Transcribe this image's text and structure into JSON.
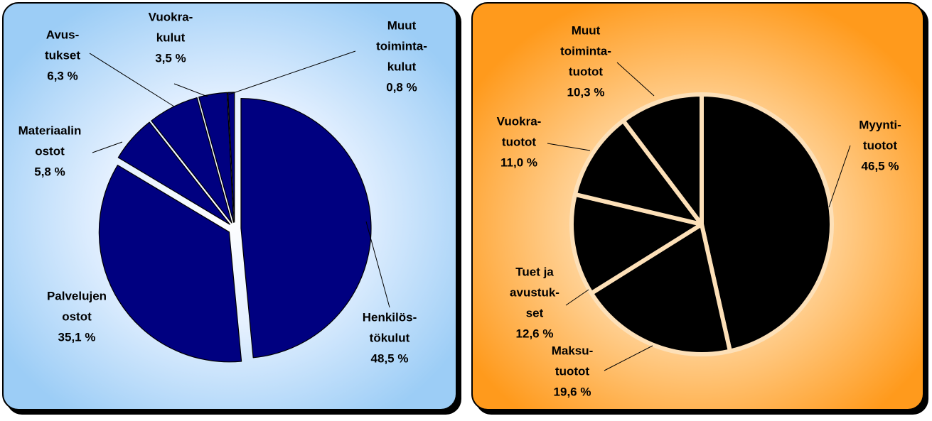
{
  "chart_data": [
    {
      "type": "pie",
      "color": "#000080",
      "categories": [
        [
          "Henkilös-",
          "tökulut"
        ],
        [
          "Palvelujen",
          "ostot"
        ],
        [
          "Materiaalin",
          "ostot"
        ],
        [
          "Avus-",
          "tukset"
        ],
        [
          "Vuokra-",
          "kulut"
        ],
        [
          "Muut",
          "toiminta-",
          "kulut"
        ]
      ],
      "values": [
        48.5,
        35.1,
        5.8,
        6.3,
        3.5,
        0.8
      ],
      "value_labels": [
        "48,5 %",
        "35,1 %",
        "5,8 %",
        "6,3 %",
        "3,5 %",
        "0,8 %"
      ]
    },
    {
      "type": "pie",
      "color": "#000000",
      "categories": [
        [
          "Myynti-",
          "tuotot"
        ],
        [
          "Maksu-",
          "tuotot"
        ],
        [
          "Tuet ja",
          "avustuk-",
          "set"
        ],
        [
          "Vuokra-",
          "tuotot"
        ],
        [
          "Muut",
          "toiminta-",
          "tuotot"
        ]
      ],
      "values": [
        46.5,
        19.6,
        12.6,
        11.0,
        10.3
      ],
      "value_labels": [
        "46,5 %",
        "19,6 %",
        "12,6 %",
        "11,0 %",
        "10,3 %"
      ]
    }
  ]
}
